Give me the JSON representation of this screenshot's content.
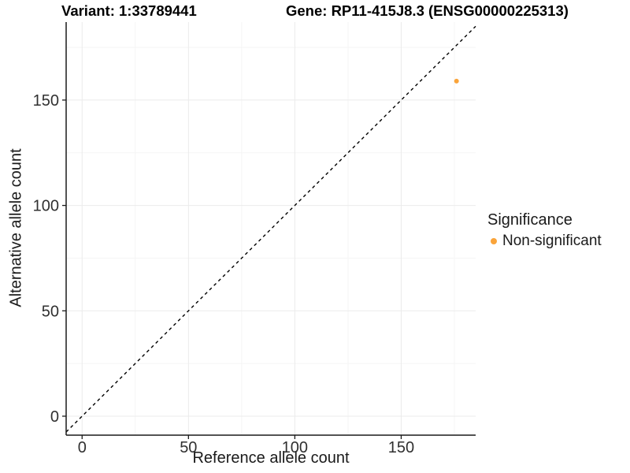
{
  "chart_data": {
    "type": "scatter",
    "titles": {
      "left": "Variant: 1:33789441",
      "right": "Gene: RP11-415J8.3 (ENSG00000225313)"
    },
    "xlabel": "Reference allele count",
    "ylabel": "Alternative allele count",
    "xlim": [
      -7.5,
      185
    ],
    "ylim": [
      -9,
      187
    ],
    "x_ticks": [
      0,
      50,
      100,
      150
    ],
    "y_ticks": [
      0,
      50,
      100,
      150
    ],
    "minor_grid_step": 25,
    "grid": true,
    "identity_line": {
      "style": "dashed",
      "color": "#000000",
      "from": -7.5,
      "to": 185
    },
    "series": [
      {
        "name": "Non-significant",
        "color": "#FAA43A",
        "points": [
          {
            "x": 176,
            "y": 159
          }
        ]
      }
    ],
    "legend": {
      "title": "Significance",
      "position": "right",
      "items": [
        {
          "label": "Non-significant",
          "color": "#FAA43A"
        }
      ]
    }
  },
  "colors": {
    "grid_major": "#EBEBEB",
    "grid_minor": "#F5F5F5",
    "axis_line": "#1a1a1a",
    "tick_label": "#303030",
    "background": "#ffffff"
  }
}
